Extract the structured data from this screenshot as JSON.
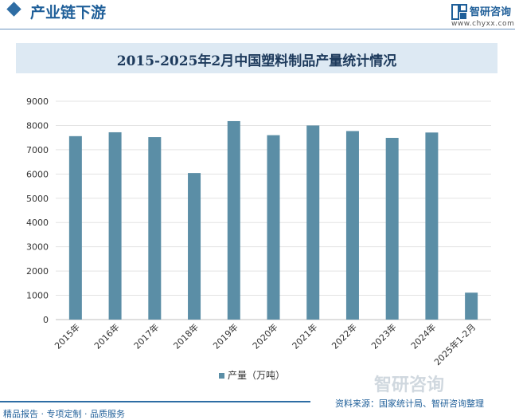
{
  "header": {
    "section_title": "产业链下游",
    "brand_name": "智研咨询",
    "brand_url": "www.chyxx.com"
  },
  "chart_data": {
    "type": "bar",
    "title": "2015-2025年2月中国塑料制品产量统计情况",
    "categories": [
      "2015年",
      "2016年",
      "2017年",
      "2018年",
      "2019年",
      "2020年",
      "2021年",
      "2022年",
      "2023年",
      "2024年",
      "2025年1-2月"
    ],
    "series": [
      {
        "name": "产量（万吨）",
        "values": [
          7560,
          7720,
          7520,
          6040,
          8180,
          7600,
          8000,
          7770,
          7490,
          7710,
          1110
        ]
      }
    ],
    "ylim": [
      0,
      9000
    ],
    "yticks": [
      0,
      1000,
      2000,
      3000,
      4000,
      5000,
      6000,
      7000,
      8000,
      9000
    ],
    "grid": true,
    "legend_position": "bottom",
    "bar_color": "#5b8ea6"
  },
  "footer": {
    "left_text": "精品报告 · 专项定制 · 品质服务",
    "source_text": "资料来源：国家统计局、智研咨询整理",
    "watermark_brand": "智研咨询"
  }
}
